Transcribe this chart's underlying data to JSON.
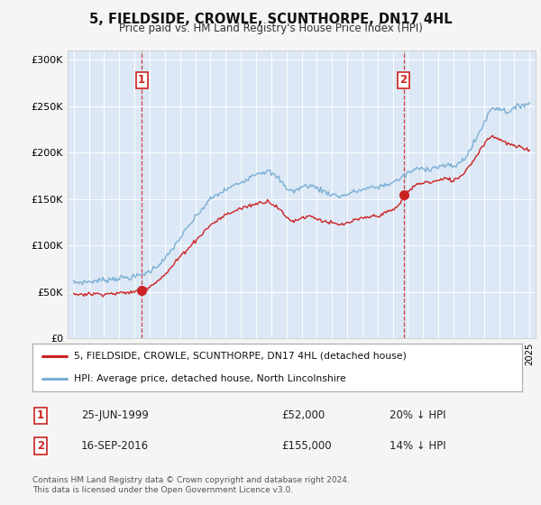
{
  "title": "5, FIELDSIDE, CROWLE, SCUNTHORPE, DN17 4HL",
  "subtitle": "Price paid vs. HM Land Registry's House Price Index (HPI)",
  "title_fontsize": 10.5,
  "subtitle_fontsize": 8.5,
  "hpi_color": "#7bafd4",
  "price_color": "#cc2222",
  "bg_color": "#f5f5f5",
  "plot_bg_color": "#dce8f5",
  "ylabel_ticks": [
    "£0",
    "£50K",
    "£100K",
    "£150K",
    "£200K",
    "£250K",
    "£300K"
  ],
  "ytick_vals": [
    0,
    50000,
    100000,
    150000,
    200000,
    250000,
    300000
  ],
  "ylim": [
    0,
    310000
  ],
  "sale1_year": 1999.48,
  "sale1_price": 52000,
  "sale1_label": "1",
  "sale1_date": "25-JUN-1999",
  "sale2_year": 2016.71,
  "sale2_price": 155000,
  "sale2_label": "2",
  "sale2_date": "16-SEP-2016",
  "legend_line1": "5, FIELDSIDE, CROWLE, SCUNTHORPE, DN17 4HL (detached house)",
  "legend_line2": "HPI: Average price, detached house, North Lincolnshire",
  "footer": "Contains HM Land Registry data © Crown copyright and database right 2024.\nThis data is licensed under the Open Government Licence v3.0.",
  "xmin": 1994.6,
  "xmax": 2025.4
}
